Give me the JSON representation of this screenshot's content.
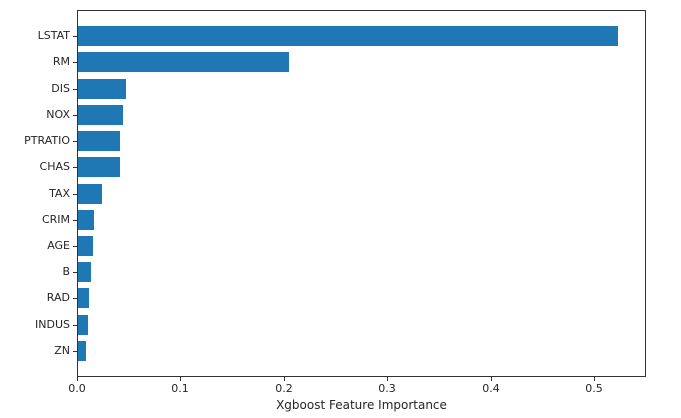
{
  "chart_data": {
    "type": "bar",
    "orientation": "horizontal",
    "title": "",
    "xlabel": "Xgboost Feature Importance",
    "ylabel": "",
    "categories": [
      "LSTAT",
      "RM",
      "DIS",
      "NOX",
      "PTRATIO",
      "CHAS",
      "TAX",
      "CRIM",
      "AGE",
      "B",
      "RAD",
      "INDUS",
      "ZN"
    ],
    "values": [
      0.524,
      0.205,
      0.047,
      0.044,
      0.0412,
      0.0408,
      0.023,
      0.016,
      0.0145,
      0.013,
      0.0105,
      0.0095,
      0.008
    ],
    "xlim": [
      0,
      0.55
    ],
    "xticks": [
      0.0,
      0.1,
      0.2,
      0.3,
      0.4,
      0.5
    ],
    "xtick_labels": [
      "0.0",
      "0.1",
      "0.2",
      "0.3",
      "0.4",
      "0.5"
    ],
    "grid": false,
    "legend": null,
    "bar_color": "#1f77b4",
    "axis_color": "#333333",
    "text_color": "#262626"
  }
}
